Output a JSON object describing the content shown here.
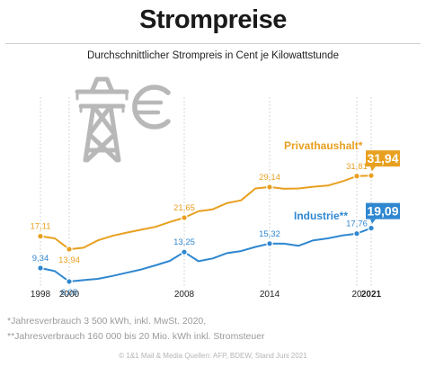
{
  "header": {
    "title": "Strompreise",
    "subtitle": "Durchschnittlicher Strompreis in Cent je Kilowattstunde"
  },
  "footnotes": [
    "*Jahresverbrauch 3 500 kWh, inkl. MwSt. 2020,",
    "**Jahresverbrauch 160 000 bis 20 Mio. kWh inkl. Stromsteuer"
  ],
  "credit": "© 1&1 Mail & Media Quellen: AFP, BDEW, Stand Juni 2021",
  "icons": [
    "power-pylon-icon",
    "euro-icon"
  ],
  "colors": {
    "privat": "#e8a020",
    "industrie": "#2f87d0",
    "axis": "#555555",
    "gridline": "#c8c8c8",
    "icon": "#b8b8b8"
  },
  "chart_data": {
    "type": "line",
    "title": "Strompreise",
    "subtitle": "Durchschnittlicher Strompreis in Cent je Kilowattstunde",
    "xlabel": "",
    "ylabel": "",
    "x_ticks": [
      "1998",
      "2000",
      "2008",
      "2014",
      "20",
      "2021"
    ],
    "tick_years": [
      1998,
      2000,
      2008,
      2014,
      2020,
      2021
    ],
    "grid": "vertical lines at tick years",
    "series": [
      {
        "name": "Privathaushalt*",
        "color": "#e8a020",
        "points": [
          [
            1998,
            17.11
          ],
          [
            1999,
            16.6
          ],
          [
            2000,
            13.94
          ],
          [
            2001,
            14.3
          ],
          [
            2002,
            16.1
          ],
          [
            2003,
            17.2
          ],
          [
            2004,
            18.0
          ],
          [
            2005,
            18.7
          ],
          [
            2006,
            19.4
          ],
          [
            2007,
            20.6
          ],
          [
            2008,
            21.65
          ],
          [
            2009,
            23.2
          ],
          [
            2010,
            23.7
          ],
          [
            2011,
            25.2
          ],
          [
            2012,
            25.9
          ],
          [
            2013,
            28.8
          ],
          [
            2014,
            29.14
          ],
          [
            2015,
            28.7
          ],
          [
            2016,
            28.8
          ],
          [
            2017,
            29.2
          ],
          [
            2018,
            29.5
          ],
          [
            2019,
            30.5
          ],
          [
            2020,
            31.81
          ],
          [
            2021,
            31.94
          ]
        ],
        "labels": [
          {
            "x": 1998,
            "text": "17,11"
          },
          {
            "x": 2000,
            "text": "13,94"
          },
          {
            "x": 2008,
            "text": "21,65"
          },
          {
            "x": 2014,
            "text": "29,14"
          },
          {
            "x": 2020,
            "text": "31,81"
          },
          {
            "x": 2021,
            "text": "31,94",
            "highlight": true
          }
        ]
      },
      {
        "name": "Industrie**",
        "color": "#2f87d0",
        "points": [
          [
            1998,
            9.34
          ],
          [
            1999,
            8.6
          ],
          [
            2000,
            6.05
          ],
          [
            2001,
            6.4
          ],
          [
            2002,
            6.7
          ],
          [
            2003,
            7.4
          ],
          [
            2004,
            8.2
          ],
          [
            2005,
            9.0
          ],
          [
            2006,
            10.0
          ],
          [
            2007,
            11.1
          ],
          [
            2008,
            13.25
          ],
          [
            2009,
            11.0
          ],
          [
            2010,
            11.7
          ],
          [
            2011,
            13.0
          ],
          [
            2012,
            13.5
          ],
          [
            2013,
            14.5
          ],
          [
            2014,
            15.32
          ],
          [
            2015,
            15.3
          ],
          [
            2016,
            14.8
          ],
          [
            2017,
            16.1
          ],
          [
            2018,
            16.6
          ],
          [
            2019,
            17.3
          ],
          [
            2020,
            17.76
          ],
          [
            2021,
            19.09
          ]
        ],
        "labels": [
          {
            "x": 1998,
            "text": "9,34"
          },
          {
            "x": 2000,
            "text": "6,05"
          },
          {
            "x": 2008,
            "text": "13,25"
          },
          {
            "x": 2014,
            "text": "15,32"
          },
          {
            "x": 2020,
            "text": "17,76"
          },
          {
            "x": 2021,
            "text": "19,09",
            "highlight": true
          }
        ]
      }
    ]
  }
}
